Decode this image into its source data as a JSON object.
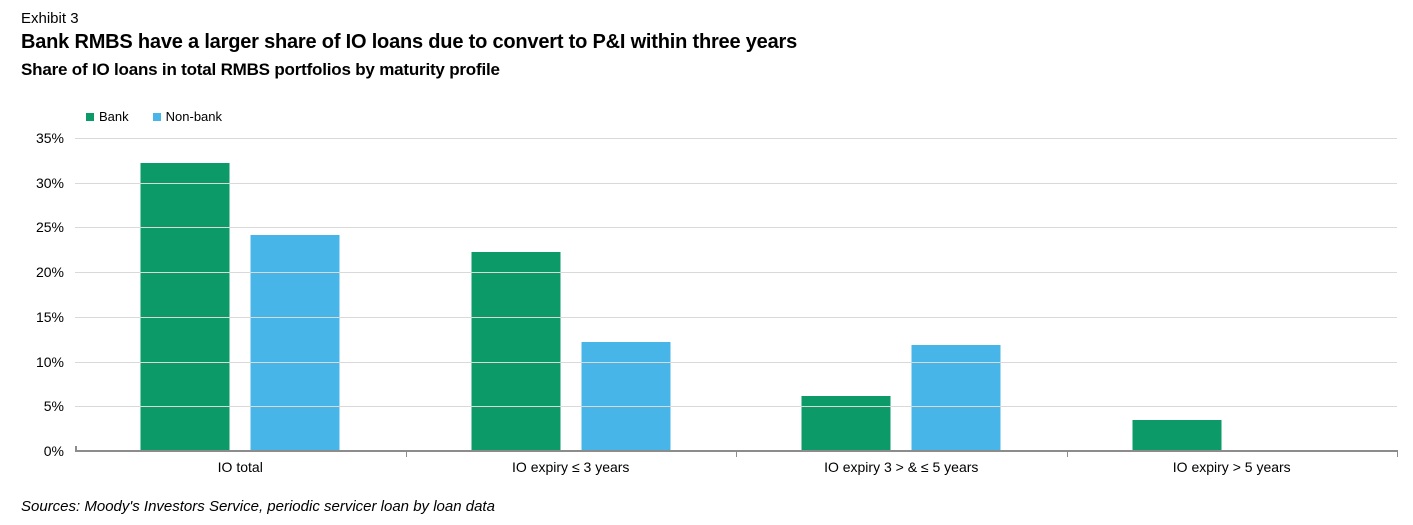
{
  "header": {
    "exhibit": "Exhibit 3",
    "title": "Bank RMBS have a larger share of IO loans due to convert to P&I within three years",
    "subtitle": "Share of IO loans in total RMBS portfolios by maturity profile"
  },
  "legend": [
    {
      "label": "Bank",
      "color": "#0b9a68"
    },
    {
      "label": "Non-bank",
      "color": "#47b5e8"
    }
  ],
  "chart_data": {
    "type": "bar",
    "categories": [
      "IO total",
      "IO expiry ≤ 3 years",
      "IO expiry 3 > & ≤ 5 years",
      "IO expiry > 5 years"
    ],
    "series": [
      {
        "name": "Bank",
        "color": "#0b9a68",
        "values": [
          32.2,
          22.2,
          6.2,
          3.5
        ]
      },
      {
        "name": "Non-bank",
        "color": "#47b5e8",
        "values": [
          24.1,
          12.2,
          11.9,
          0
        ]
      }
    ],
    "title": "Share of IO loans in total RMBS portfolios by maturity profile",
    "xlabel": "",
    "ylabel": "",
    "ylim": [
      0,
      35
    ],
    "ytick_step": 5,
    "ytick_labels": [
      "0%",
      "5%",
      "10%",
      "15%",
      "20%",
      "25%",
      "30%",
      "35%"
    ],
    "grid": true,
    "legend_position": "top-left"
  },
  "footer": {
    "source": "Sources: Moody's Investors Service, periodic servicer loan by loan data"
  },
  "colors": {
    "bank": "#0b9a68",
    "nonbank": "#47b5e8",
    "gridline": "#d9d9d9",
    "axis": "#8c8c8c",
    "text": "#000000"
  }
}
